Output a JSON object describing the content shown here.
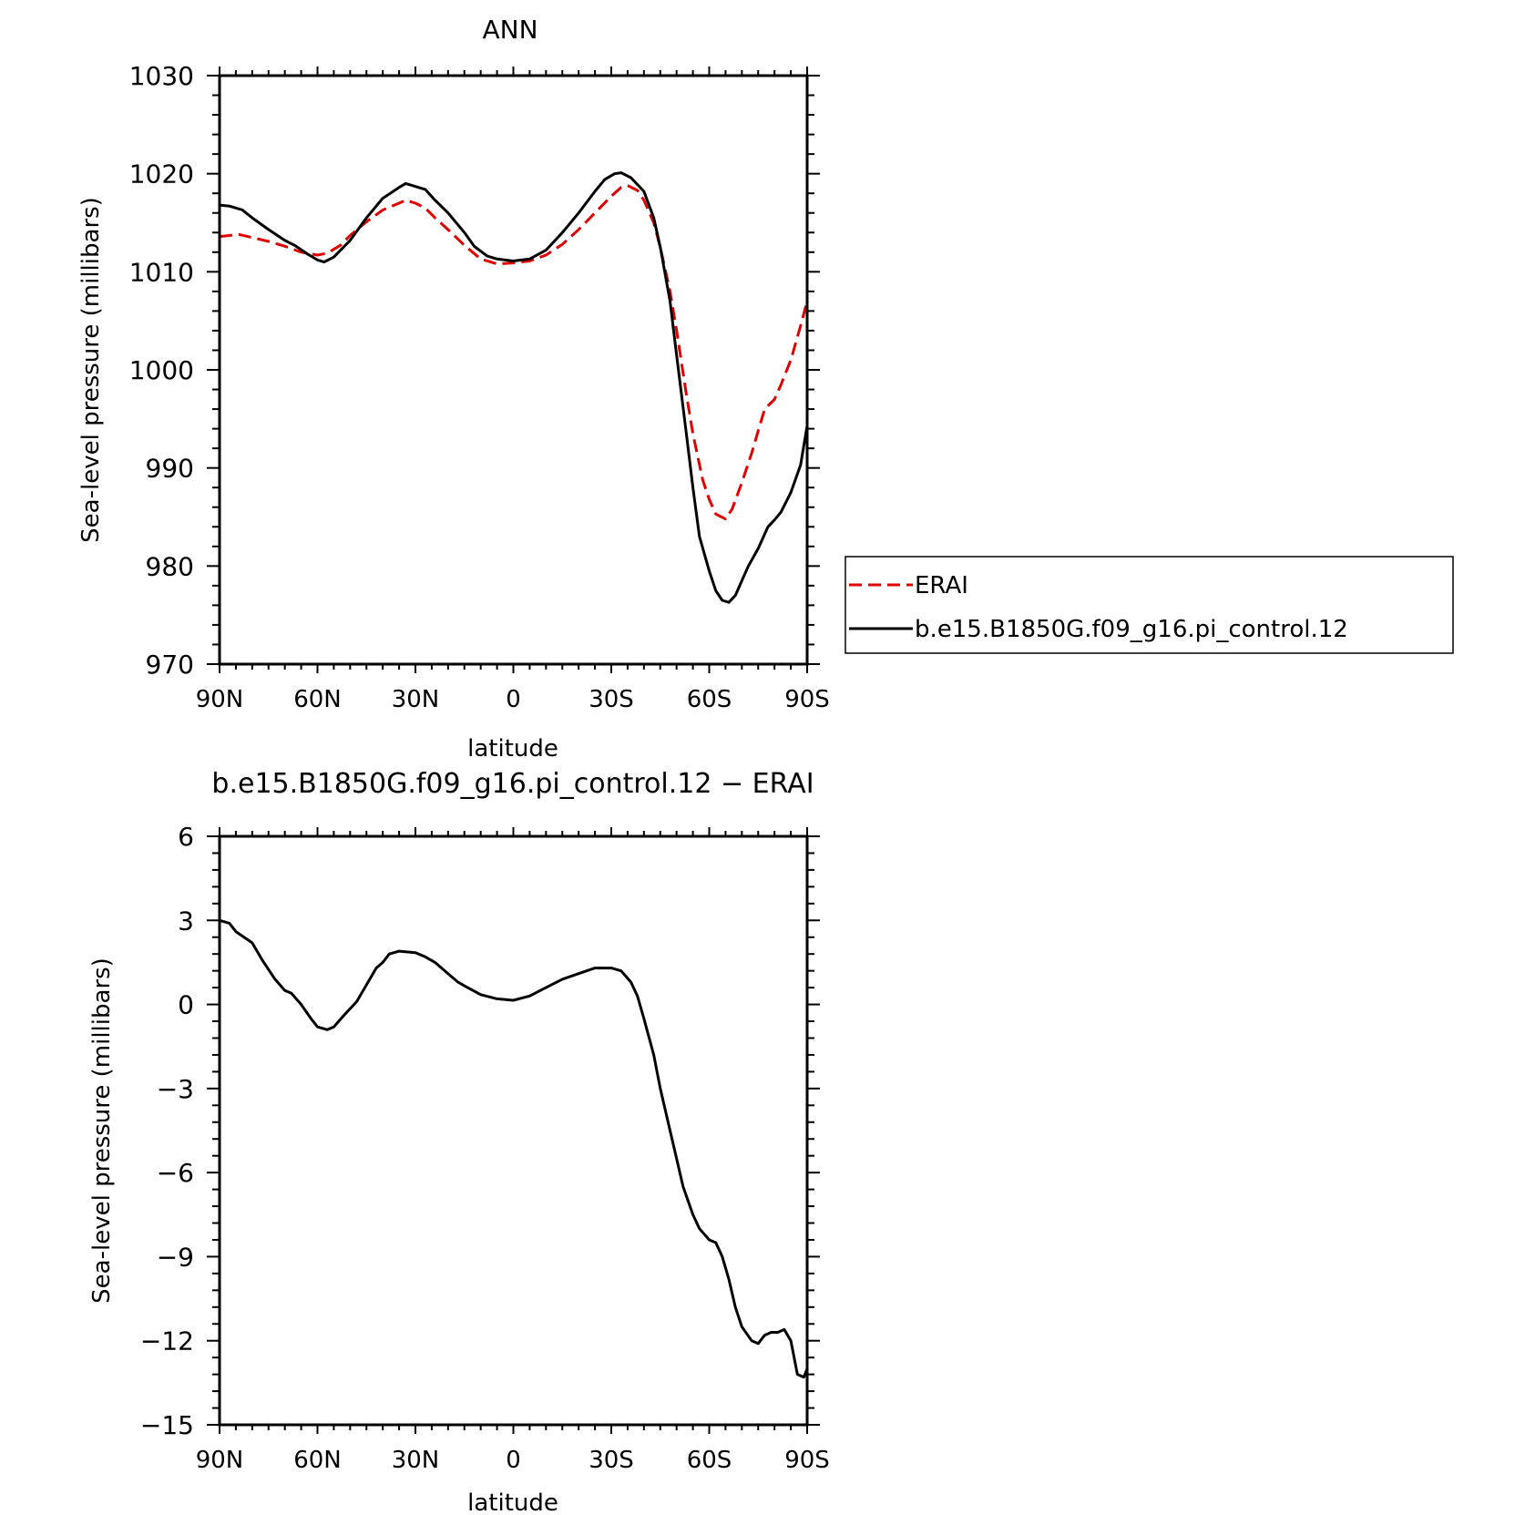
{
  "chart_data": [
    {
      "type": "line",
      "title": "ANN",
      "xlabel": "latitude",
      "ylabel": "Sea-level pressure (millibars)",
      "xlim": [
        90,
        -90
      ],
      "ylim": [
        970,
        1030
      ],
      "x_ticks": [
        {
          "value": 90,
          "label": "90N"
        },
        {
          "value": 60,
          "label": "60N"
        },
        {
          "value": 30,
          "label": "30N"
        },
        {
          "value": 0,
          "label": "0"
        },
        {
          "value": -30,
          "label": "30S"
        },
        {
          "value": -60,
          "label": "60S"
        },
        {
          "value": -90,
          "label": "90S"
        }
      ],
      "y_ticks": [
        {
          "value": 1030,
          "label": "1030"
        },
        {
          "value": 1020,
          "label": "1020"
        },
        {
          "value": 1010,
          "label": "1010"
        },
        {
          "value": 1000,
          "label": "1000"
        },
        {
          "value": 990,
          "label": "990"
        },
        {
          "value": 980,
          "label": "980"
        },
        {
          "value": 970,
          "label": "970"
        }
      ],
      "grid": false,
      "legend_position": "right",
      "series": [
        {
          "name": "ERAI",
          "color": "#e00000",
          "dash": "dashed",
          "points": [
            [
              90,
              1013.6
            ],
            [
              87,
              1013.7
            ],
            [
              84,
              1013.8
            ],
            [
              80,
              1013.5
            ],
            [
              75,
              1013.1
            ],
            [
              70,
              1012.6
            ],
            [
              65,
              1012.0
            ],
            [
              60,
              1011.7
            ],
            [
              57,
              1011.9
            ],
            [
              53,
              1012.7
            ],
            [
              50,
              1013.7
            ],
            [
              45,
              1015.1
            ],
            [
              40,
              1016.3
            ],
            [
              35,
              1017.0
            ],
            [
              33,
              1017.3
            ],
            [
              30,
              1017.0
            ],
            [
              27,
              1016.5
            ],
            [
              24,
              1015.5
            ],
            [
              20,
              1014.3
            ],
            [
              15,
              1012.7
            ],
            [
              10,
              1011.3
            ],
            [
              5,
              1010.8
            ],
            [
              0,
              1010.9
            ],
            [
              -5,
              1011.1
            ],
            [
              -10,
              1011.7
            ],
            [
              -15,
              1012.8
            ],
            [
              -20,
              1014.3
            ],
            [
              -25,
              1016.0
            ],
            [
              -30,
              1017.7
            ],
            [
              -33,
              1018.6
            ],
            [
              -35,
              1018.8
            ],
            [
              -38,
              1018.3
            ],
            [
              -40,
              1017.3
            ],
            [
              -43,
              1015.0
            ],
            [
              -45,
              1012.5
            ],
            [
              -48,
              1008.0
            ],
            [
              -50,
              1004.0
            ],
            [
              -53,
              997.5
            ],
            [
              -55,
              993.5
            ],
            [
              -58,
              988.8
            ],
            [
              -60,
              986.8
            ],
            [
              -62,
              985.3
            ],
            [
              -65,
              984.8
            ],
            [
              -67,
              985.8
            ],
            [
              -70,
              988.5
            ],
            [
              -73,
              991.5
            ],
            [
              -75,
              993.8
            ],
            [
              -77,
              996.0
            ],
            [
              -80,
              997.0
            ],
            [
              -82,
              998.5
            ],
            [
              -85,
              1001.0
            ],
            [
              -88,
              1004.5
            ],
            [
              -90,
              1007.0
            ]
          ]
        },
        {
          "name": "b.e15.B1850G.f09_g16.pi_control.12",
          "color": "#000000",
          "dash": "solid",
          "points": [
            [
              90,
              1016.8
            ],
            [
              87,
              1016.7
            ],
            [
              83,
              1016.3
            ],
            [
              80,
              1015.5
            ],
            [
              75,
              1014.3
            ],
            [
              70,
              1013.2
            ],
            [
              67,
              1012.7
            ],
            [
              63,
              1011.8
            ],
            [
              60,
              1011.2
            ],
            [
              58,
              1011.0
            ],
            [
              55,
              1011.5
            ],
            [
              50,
              1013.2
            ],
            [
              45,
              1015.5
            ],
            [
              40,
              1017.5
            ],
            [
              35,
              1018.6
            ],
            [
              33,
              1019.0
            ],
            [
              30,
              1018.7
            ],
            [
              27,
              1018.4
            ],
            [
              24,
              1017.3
            ],
            [
              20,
              1016.0
            ],
            [
              15,
              1014.0
            ],
            [
              12,
              1012.6
            ],
            [
              8,
              1011.6
            ],
            [
              5,
              1011.3
            ],
            [
              0,
              1011.1
            ],
            [
              -5,
              1011.3
            ],
            [
              -10,
              1012.2
            ],
            [
              -15,
              1014.0
            ],
            [
              -20,
              1016.0
            ],
            [
              -25,
              1018.2
            ],
            [
              -28,
              1019.4
            ],
            [
              -31,
              1020.0
            ],
            [
              -33,
              1020.1
            ],
            [
              -36,
              1019.6
            ],
            [
              -40,
              1018.2
            ],
            [
              -43,
              1015.5
            ],
            [
              -45,
              1012.5
            ],
            [
              -48,
              1007.0
            ],
            [
              -50,
              1001.5
            ],
            [
              -53,
              993.5
            ],
            [
              -55,
              988.0
            ],
            [
              -57,
              983.0
            ],
            [
              -60,
              979.5
            ],
            [
              -62,
              977.5
            ],
            [
              -64,
              976.5
            ],
            [
              -66,
              976.3
            ],
            [
              -68,
              977.0
            ],
            [
              -70,
              978.5
            ],
            [
              -72,
              980.0
            ],
            [
              -75,
              981.8
            ],
            [
              -78,
              984.0
            ],
            [
              -80,
              984.7
            ],
            [
              -82,
              985.5
            ],
            [
              -85,
              987.5
            ],
            [
              -88,
              990.3
            ],
            [
              -90,
              994.3
            ]
          ]
        }
      ]
    },
    {
      "type": "line",
      "title": "b.e15.B1850G.f09_g16.pi_control.12 − ERAI",
      "xlabel": "latitude",
      "ylabel": "Sea-level pressure (millibars)",
      "xlim": [
        90,
        -90
      ],
      "ylim": [
        -15,
        6
      ],
      "x_ticks": [
        {
          "value": 90,
          "label": "90N"
        },
        {
          "value": 60,
          "label": "60N"
        },
        {
          "value": 30,
          "label": "30N"
        },
        {
          "value": 0,
          "label": "0"
        },
        {
          "value": -30,
          "label": "30S"
        },
        {
          "value": -60,
          "label": "60S"
        },
        {
          "value": -90,
          "label": "90S"
        }
      ],
      "y_ticks": [
        {
          "value": 6,
          "label": "6"
        },
        {
          "value": 3,
          "label": "3"
        },
        {
          "value": 0,
          "label": "0"
        },
        {
          "value": -3,
          "label": "−3"
        },
        {
          "value": -6,
          "label": "−6"
        },
        {
          "value": -9,
          "label": "−9"
        },
        {
          "value": -12,
          "label": "−12"
        },
        {
          "value": -15,
          "label": "−15"
        }
      ],
      "grid": false,
      "series": [
        {
          "color": "#000000",
          "dash": "solid",
          "points": [
            [
              90,
              3.0
            ],
            [
              87,
              2.9
            ],
            [
              85,
              2.6
            ],
            [
              80,
              2.2
            ],
            [
              77,
              1.6
            ],
            [
              73,
              0.9
            ],
            [
              70,
              0.5
            ],
            [
              68,
              0.4
            ],
            [
              65,
              0.0
            ],
            [
              62,
              -0.5
            ],
            [
              60,
              -0.8
            ],
            [
              57,
              -0.9
            ],
            [
              55,
              -0.8
            ],
            [
              52,
              -0.4
            ],
            [
              48,
              0.1
            ],
            [
              45,
              0.7
            ],
            [
              42,
              1.3
            ],
            [
              40,
              1.5
            ],
            [
              38,
              1.8
            ],
            [
              35,
              1.9
            ],
            [
              30,
              1.85
            ],
            [
              27,
              1.7
            ],
            [
              24,
              1.5
            ],
            [
              20,
              1.1
            ],
            [
              17,
              0.8
            ],
            [
              14,
              0.6
            ],
            [
              10,
              0.35
            ],
            [
              5,
              0.2
            ],
            [
              0,
              0.15
            ],
            [
              -5,
              0.3
            ],
            [
              -10,
              0.6
            ],
            [
              -15,
              0.9
            ],
            [
              -20,
              1.1
            ],
            [
              -25,
              1.3
            ],
            [
              -30,
              1.3
            ],
            [
              -33,
              1.2
            ],
            [
              -36,
              0.8
            ],
            [
              -38,
              0.3
            ],
            [
              -40,
              -0.5
            ],
            [
              -43,
              -1.8
            ],
            [
              -45,
              -3.0
            ],
            [
              -48,
              -4.5
            ],
            [
              -50,
              -5.5
            ],
            [
              -52,
              -6.5
            ],
            [
              -55,
              -7.5
            ],
            [
              -57,
              -8.0
            ],
            [
              -60,
              -8.4
            ],
            [
              -62,
              -8.5
            ],
            [
              -64,
              -9.0
            ],
            [
              -66,
              -9.8
            ],
            [
              -68,
              -10.8
            ],
            [
              -70,
              -11.5
            ],
            [
              -73,
              -12.0
            ],
            [
              -75,
              -12.1
            ],
            [
              -77,
              -11.8
            ],
            [
              -79,
              -11.7
            ],
            [
              -81,
              -11.7
            ],
            [
              -83,
              -11.6
            ],
            [
              -85,
              -12.0
            ],
            [
              -87,
              -13.2
            ],
            [
              -89,
              -13.3
            ],
            [
              -90,
              -13.0
            ]
          ]
        }
      ]
    }
  ]
}
